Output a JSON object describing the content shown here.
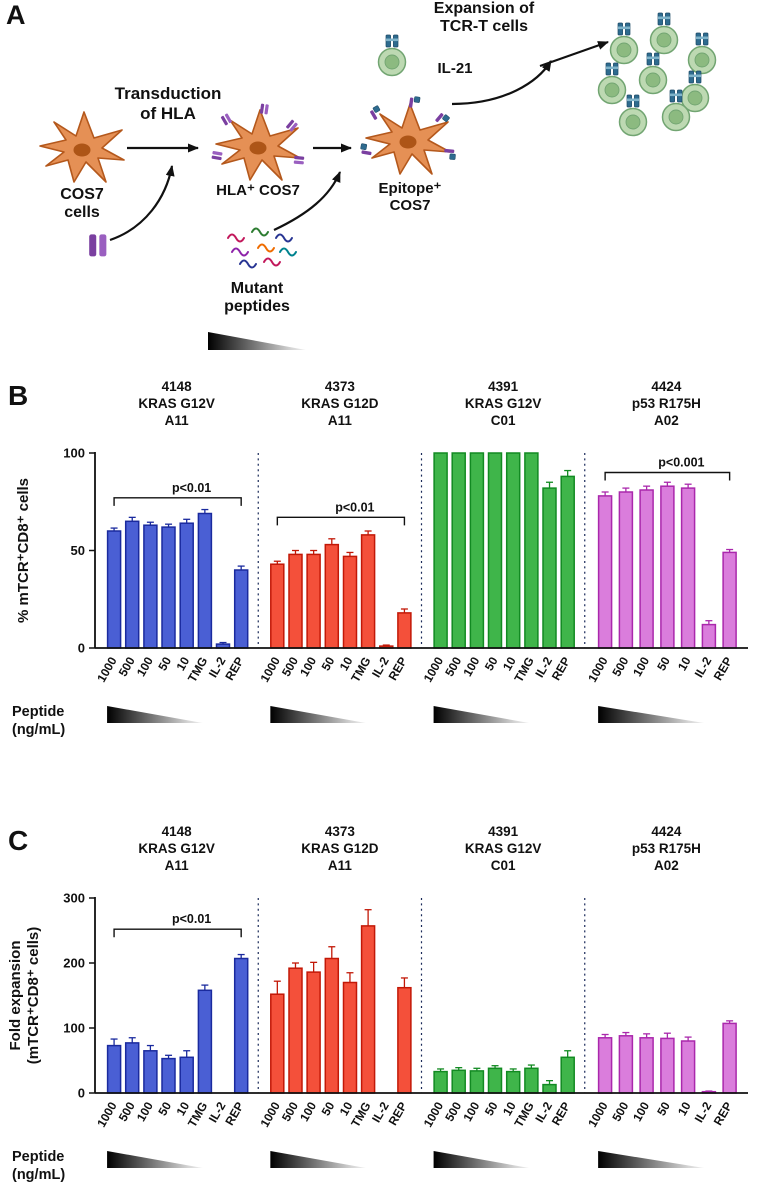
{
  "panel_a": {
    "label": "A",
    "transduction": "Transduction\nof HLA",
    "cos7": "COS7\ncells",
    "hla_cos7": "HLA⁺ COS7",
    "epitope_cos7": "Epitope⁺\nCOS7",
    "mutant_peptides": "Mutant\npeptides",
    "il21": "IL-21",
    "expansion": "Expansion of\nTCR-T cells"
  },
  "colors": {
    "blue_fill": "#4a5fd4",
    "blue_stroke": "#1a2a9e",
    "red_fill": "#f4503a",
    "red_stroke": "#c21807",
    "green_fill": "#3fb54a",
    "green_stroke": "#128a22",
    "magenta_fill": "#da7ddc",
    "magenta_stroke": "#aa28ac"
  },
  "chart_data": [
    {
      "id": "B",
      "type": "bar",
      "panel_label": "B",
      "ylabel_lines": [
        "% mTCR⁺CD8⁺ cells"
      ],
      "xlabel_lines": [
        "Peptide",
        "(ng/mL)"
      ],
      "ylim": [
        0,
        100
      ],
      "yticks": [
        0,
        50,
        100
      ],
      "groups": [
        {
          "title_lines": [
            "4148",
            "KRAS G12V",
            "A11"
          ],
          "fill": "#4a5fd4",
          "stroke": "#1a2a9e",
          "categories": [
            "1000",
            "500",
            "100",
            "50",
            "10",
            "TMG",
            "IL-2",
            "REP"
          ],
          "values": [
            60,
            65,
            63,
            62,
            64,
            69,
            2,
            40
          ],
          "errors": [
            1.5,
            2,
            1.5,
            1.5,
            2,
            2,
            0.8,
            2
          ],
          "bracket": {
            "from": 0,
            "to": 7,
            "y": 77,
            "label": "p<0.01"
          },
          "wedge": true
        },
        {
          "title_lines": [
            "4373",
            "KRAS G12D",
            "A11"
          ],
          "fill": "#f4503a",
          "stroke": "#c21807",
          "categories": [
            "1000",
            "500",
            "100",
            "50",
            "10",
            "TMG",
            "IL-2",
            "REP"
          ],
          "values": [
            43,
            48,
            48,
            53,
            47,
            58,
            1,
            18
          ],
          "errors": [
            1.5,
            2,
            2,
            3,
            2,
            2,
            0.5,
            2
          ],
          "bracket": {
            "from": 0,
            "to": 7,
            "y": 67,
            "label": "p<0.01"
          },
          "wedge": true
        },
        {
          "title_lines": [
            "4391",
            "KRAS G12V",
            "C01"
          ],
          "fill": "#3fb54a",
          "stroke": "#128a22",
          "categories": [
            "1000",
            "500",
            "100",
            "50",
            "10",
            "TMG",
            "IL-2",
            "REP"
          ],
          "values": [
            100,
            100,
            100,
            100,
            100,
            100,
            82,
            88
          ],
          "errors": [
            0,
            0,
            0,
            0,
            0,
            0,
            3,
            3
          ],
          "bracket": null,
          "wedge": true
        },
        {
          "title_lines": [
            "4424",
            "p53 R175H",
            "A02"
          ],
          "fill": "#da7ddc",
          "stroke": "#aa28ac",
          "categories": [
            "1000",
            "500",
            "100",
            "50",
            "10",
            "IL-2",
            "REP"
          ],
          "values": [
            78,
            80,
            81,
            83,
            82,
            12,
            49
          ],
          "errors": [
            2,
            2,
            2,
            2,
            2,
            2,
            1.5
          ],
          "bracket": {
            "from": 0,
            "to": 6,
            "y": 90,
            "label": "p<0.001"
          },
          "wedge": true
        }
      ]
    },
    {
      "id": "C",
      "type": "bar",
      "panel_label": "C",
      "ylabel_lines": [
        "Fold expansion",
        "(mTCR⁺CD8⁺ cells)"
      ],
      "xlabel_lines": [
        "Peptide",
        "(ng/mL)"
      ],
      "ylim": [
        0,
        300
      ],
      "yticks": [
        0,
        100,
        200,
        300
      ],
      "groups": [
        {
          "title_lines": [
            "4148",
            "KRAS G12V",
            "A11"
          ],
          "fill": "#4a5fd4",
          "stroke": "#1a2a9e",
          "categories": [
            "1000",
            "500",
            "100",
            "50",
            "10",
            "TMG",
            "IL-2",
            "REP"
          ],
          "values": [
            73,
            77,
            65,
            53,
            55,
            158,
            0,
            207
          ],
          "errors": [
            10,
            8,
            8,
            5,
            10,
            8,
            0,
            6
          ],
          "bracket": {
            "from": 0,
            "to": 7,
            "y": 252,
            "label": "p<0.01"
          },
          "wedge": true
        },
        {
          "title_lines": [
            "4373",
            "KRAS G12D",
            "A11"
          ],
          "fill": "#f4503a",
          "stroke": "#c21807",
          "categories": [
            "1000",
            "500",
            "100",
            "50",
            "10",
            "TMG",
            "IL-2",
            "REP"
          ],
          "values": [
            152,
            192,
            186,
            207,
            170,
            257,
            0,
            162
          ],
          "errors": [
            20,
            8,
            15,
            18,
            15,
            25,
            0,
            15
          ],
          "bracket": null,
          "wedge": true
        },
        {
          "title_lines": [
            "4391",
            "KRAS G12V",
            "C01"
          ],
          "fill": "#3fb54a",
          "stroke": "#128a22",
          "categories": [
            "1000",
            "500",
            "100",
            "50",
            "10",
            "TMG",
            "IL-2",
            "REP"
          ],
          "values": [
            33,
            35,
            34,
            38,
            33,
            38,
            13,
            55
          ],
          "errors": [
            4,
            4,
            4,
            4,
            4,
            5,
            6,
            10
          ],
          "bracket": null,
          "wedge": true
        },
        {
          "title_lines": [
            "4424",
            "p53 R175H",
            "A02"
          ],
          "fill": "#da7ddc",
          "stroke": "#aa28ac",
          "categories": [
            "1000",
            "500",
            "100",
            "50",
            "10",
            "IL-2",
            "REP"
          ],
          "values": [
            85,
            88,
            85,
            84,
            80,
            2,
            107
          ],
          "errors": [
            5,
            5,
            6,
            8,
            6,
            1,
            4
          ],
          "bracket": null,
          "wedge": true
        }
      ]
    }
  ]
}
